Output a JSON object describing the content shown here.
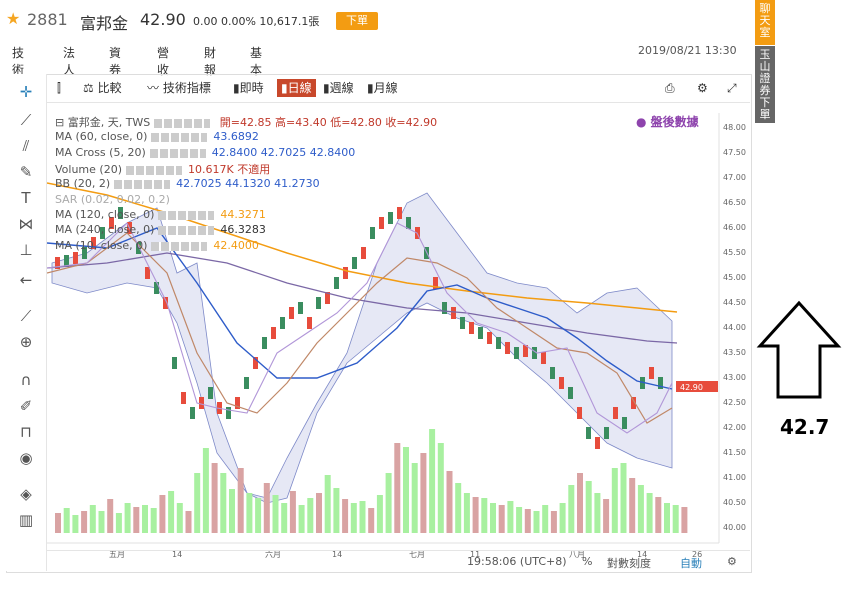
{
  "header": {
    "code": "2881",
    "name": "富邦金",
    "price": "42.90",
    "change": "0.00 0.00% 10,617.1張",
    "order_button": "下單"
  },
  "nav_tabs": [
    "技術",
    "法人",
    "資券",
    "營收",
    "財報",
    "基本"
  ],
  "datetime": "2019/08/21 13:30",
  "right_sidebar": {
    "chat": "聊天室",
    "bank": "玉山證券下單"
  },
  "toolbar": {
    "compare": "比較",
    "indicators": "技術指標",
    "realtime": "即時",
    "daily": "日線",
    "weekly": "週線",
    "monthly": "月線"
  },
  "legend": {
    "l1": "富邦金, 天, TWS",
    "l1v": "開=42.85 高=43.40 低=42.80 收=42.90",
    "l2": "MA (60, close, 0)",
    "l2v": "43.6892",
    "l3": "MA Cross (5, 20)",
    "l3v": "42.8400  42.7025  42.8400",
    "l4": "Volume (20)",
    "l4v": "10.617K  不適用",
    "l5": "BB (20, 2)",
    "l5v": "42.7025  44.1320  41.2730",
    "l6": "SAR (0.02, 0.02, 0.2)",
    "l7": "MA (120, close, 0)",
    "l7v": "44.3271",
    "l8": "MA (240, close, 0)",
    "l8v": "46.3283",
    "l9": "MA (10, close, 0)",
    "l9v": "42.4000"
  },
  "after_hours": "盤後數據",
  "price_tag": "42.90",
  "y_axis": [
    "48.00",
    "47.50",
    "47.00",
    "46.50",
    "46.00",
    "45.50",
    "45.00",
    "44.50",
    "44.00",
    "43.50",
    "43.00",
    "42.50",
    "42.00",
    "41.50",
    "41.00",
    "40.50",
    "40.00"
  ],
  "x_axis": [
    "五月",
    "14",
    "六月",
    "14",
    "七月",
    "11",
    "八月",
    "14",
    "26"
  ],
  "bottom": {
    "time": "19:58:06 (UTC+8)",
    "pct": "%",
    "log": "對數刻度",
    "auto": "自動"
  },
  "annotation": "42.7",
  "colors": {
    "up": "#e74c3c",
    "down": "#3a8d5f",
    "accent": "#c8482b",
    "orange": "#f39c12"
  }
}
